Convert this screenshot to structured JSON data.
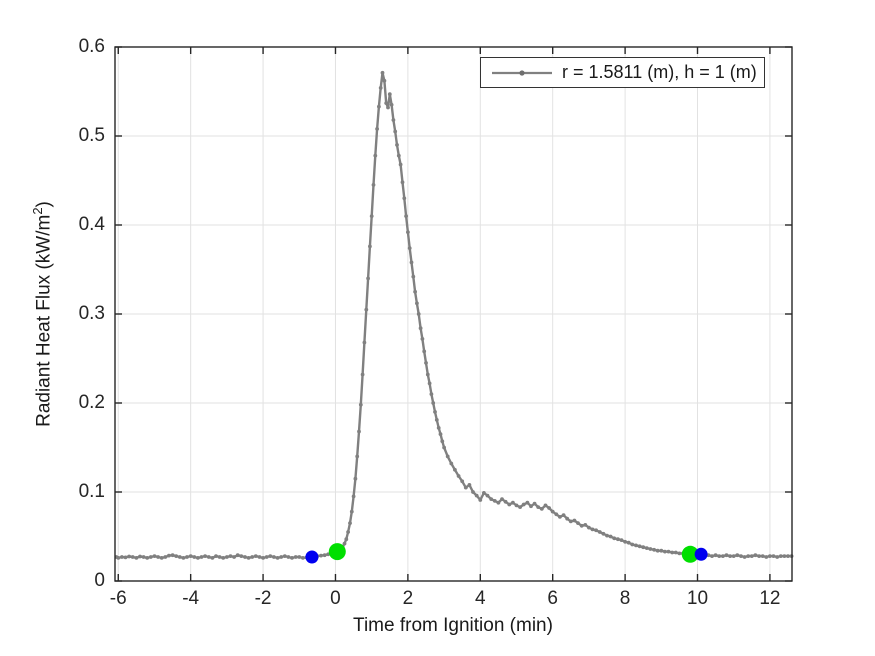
{
  "figure": {
    "background": "#ffffff",
    "axes_color": "#262626",
    "grid_color": "#e2e2e2",
    "tick_label_color": "#262626"
  },
  "legend": {
    "label": "r = 1.5811 (m), h = 1 (m)",
    "line_color": "#808080",
    "position": "top-right"
  },
  "chart_data": {
    "type": "line",
    "title": "",
    "xlabel": "Time from Ignition (min)",
    "ylabel": "Radiant Heat Flux (kW/m^2)",
    "ylabel_parts": {
      "prefix": "Radiant Heat Flux (kW/m",
      "sup": "2",
      "suffix": ")"
    },
    "xlim": [
      -6.09,
      12.61
    ],
    "ylim": [
      0,
      0.6
    ],
    "x_ticks": [
      -6,
      -4,
      -2,
      0,
      2,
      4,
      6,
      8,
      10,
      12
    ],
    "y_ticks": [
      0,
      0.1,
      0.2,
      0.3,
      0.4,
      0.5,
      0.6
    ],
    "grid": true,
    "legend_position": "top-right",
    "series": [
      {
        "name": "r = 1.5811 (m), h = 1 (m)",
        "color": "#808080",
        "marker": "point",
        "peak": {
          "x": 1.3,
          "y": 0.571
        },
        "points": [
          [
            -6.05,
            0.027
          ],
          [
            -6,
            0.026
          ],
          [
            -5.9,
            0.027
          ],
          [
            -5.8,
            0.0265
          ],
          [
            -5.7,
            0.0275
          ],
          [
            -5.6,
            0.027
          ],
          [
            -5.5,
            0.026
          ],
          [
            -5.4,
            0.0275
          ],
          [
            -5.3,
            0.027
          ],
          [
            -5.2,
            0.026
          ],
          [
            -5.1,
            0.027
          ],
          [
            -5,
            0.028
          ],
          [
            -4.9,
            0.027
          ],
          [
            -4.8,
            0.026
          ],
          [
            -4.7,
            0.027
          ],
          [
            -4.6,
            0.0285
          ],
          [
            -4.5,
            0.029
          ],
          [
            -4.4,
            0.028
          ],
          [
            -4.3,
            0.027
          ],
          [
            -4.2,
            0.026
          ],
          [
            -4.1,
            0.027
          ],
          [
            -4,
            0.028
          ],
          [
            -3.9,
            0.027
          ],
          [
            -3.8,
            0.026
          ],
          [
            -3.7,
            0.027
          ],
          [
            -3.6,
            0.028
          ],
          [
            -3.5,
            0.027
          ],
          [
            -3.4,
            0.026
          ],
          [
            -3.3,
            0.028
          ],
          [
            -3.2,
            0.027
          ],
          [
            -3.1,
            0.026
          ],
          [
            -3,
            0.027
          ],
          [
            -2.9,
            0.028
          ],
          [
            -2.8,
            0.027
          ],
          [
            -2.7,
            0.029
          ],
          [
            -2.6,
            0.028
          ],
          [
            -2.5,
            0.027
          ],
          [
            -2.4,
            0.026
          ],
          [
            -2.3,
            0.027
          ],
          [
            -2.2,
            0.028
          ],
          [
            -2.1,
            0.027
          ],
          [
            -2,
            0.026
          ],
          [
            -1.9,
            0.027
          ],
          [
            -1.8,
            0.028
          ],
          [
            -1.7,
            0.027
          ],
          [
            -1.6,
            0.026
          ],
          [
            -1.5,
            0.027
          ],
          [
            -1.4,
            0.028
          ],
          [
            -1.3,
            0.027
          ],
          [
            -1.2,
            0.026
          ],
          [
            -1.1,
            0.027
          ],
          [
            -1,
            0.027
          ],
          [
            -0.9,
            0.026
          ],
          [
            -0.8,
            0.0265
          ],
          [
            -0.7,
            0.027
          ],
          [
            -0.6,
            0.0275
          ],
          [
            -0.5,
            0.028
          ],
          [
            -0.4,
            0.0285
          ],
          [
            -0.3,
            0.029
          ],
          [
            -0.2,
            0.03
          ],
          [
            -0.1,
            0.031
          ],
          [
            0,
            0.033
          ],
          [
            0.1,
            0.034
          ],
          [
            0.15,
            0.036
          ],
          [
            0.2,
            0.038
          ],
          [
            0.25,
            0.042
          ],
          [
            0.3,
            0.047
          ],
          [
            0.35,
            0.055
          ],
          [
            0.4,
            0.065
          ],
          [
            0.45,
            0.078
          ],
          [
            0.5,
            0.095
          ],
          [
            0.55,
            0.115
          ],
          [
            0.6,
            0.14
          ],
          [
            0.65,
            0.168
          ],
          [
            0.7,
            0.198
          ],
          [
            0.75,
            0.232
          ],
          [
            0.8,
            0.268
          ],
          [
            0.85,
            0.305
          ],
          [
            0.9,
            0.34
          ],
          [
            0.95,
            0.376
          ],
          [
            1,
            0.41
          ],
          [
            1.05,
            0.445
          ],
          [
            1.1,
            0.478
          ],
          [
            1.15,
            0.508
          ],
          [
            1.2,
            0.533
          ],
          [
            1.25,
            0.554
          ],
          [
            1.3,
            0.571
          ],
          [
            1.35,
            0.562
          ],
          [
            1.4,
            0.537
          ],
          [
            1.45,
            0.532
          ],
          [
            1.5,
            0.547
          ],
          [
            1.55,
            0.535
          ],
          [
            1.6,
            0.518
          ],
          [
            1.65,
            0.505
          ],
          [
            1.7,
            0.49
          ],
          [
            1.75,
            0.478
          ],
          [
            1.8,
            0.468
          ],
          [
            1.85,
            0.448
          ],
          [
            1.9,
            0.43
          ],
          [
            1.95,
            0.41
          ],
          [
            2,
            0.392
          ],
          [
            2.05,
            0.374
          ],
          [
            2.1,
            0.358
          ],
          [
            2.15,
            0.342
          ],
          [
            2.2,
            0.325
          ],
          [
            2.25,
            0.312
          ],
          [
            2.3,
            0.3
          ],
          [
            2.35,
            0.284
          ],
          [
            2.4,
            0.272
          ],
          [
            2.45,
            0.258
          ],
          [
            2.5,
            0.245
          ],
          [
            2.55,
            0.232
          ],
          [
            2.6,
            0.222
          ],
          [
            2.65,
            0.21
          ],
          [
            2.7,
            0.2
          ],
          [
            2.75,
            0.19
          ],
          [
            2.8,
            0.181
          ],
          [
            2.85,
            0.172
          ],
          [
            2.9,
            0.165
          ],
          [
            2.95,
            0.157
          ],
          [
            3,
            0.15
          ],
          [
            3.1,
            0.14
          ],
          [
            3.2,
            0.132
          ],
          [
            3.3,
            0.125
          ],
          [
            3.4,
            0.118
          ],
          [
            3.5,
            0.112
          ],
          [
            3.6,
            0.105
          ],
          [
            3.7,
            0.108
          ],
          [
            3.8,
            0.1
          ],
          [
            3.9,
            0.096
          ],
          [
            4,
            0.091
          ],
          [
            4.1,
            0.099
          ],
          [
            4.2,
            0.096
          ],
          [
            4.3,
            0.092
          ],
          [
            4.4,
            0.09
          ],
          [
            4.5,
            0.088
          ],
          [
            4.6,
            0.092
          ],
          [
            4.7,
            0.089
          ],
          [
            4.8,
            0.086
          ],
          [
            4.9,
            0.088
          ],
          [
            5,
            0.085
          ],
          [
            5.1,
            0.083
          ],
          [
            5.2,
            0.086
          ],
          [
            5.3,
            0.088
          ],
          [
            5.4,
            0.084
          ],
          [
            5.5,
            0.087
          ],
          [
            5.6,
            0.083
          ],
          [
            5.7,
            0.081
          ],
          [
            5.8,
            0.085
          ],
          [
            5.9,
            0.082
          ],
          [
            6,
            0.078
          ],
          [
            6.1,
            0.075
          ],
          [
            6.2,
            0.072
          ],
          [
            6.3,
            0.074
          ],
          [
            6.4,
            0.07
          ],
          [
            6.5,
            0.067
          ],
          [
            6.6,
            0.068
          ],
          [
            6.7,
            0.065
          ],
          [
            6.8,
            0.062
          ],
          [
            6.9,
            0.063
          ],
          [
            7,
            0.06
          ],
          [
            7.1,
            0.058
          ],
          [
            7.2,
            0.057
          ],
          [
            7.3,
            0.055
          ],
          [
            7.4,
            0.053
          ],
          [
            7.5,
            0.051
          ],
          [
            7.6,
            0.05
          ],
          [
            7.7,
            0.048
          ],
          [
            7.8,
            0.047
          ],
          [
            7.9,
            0.046
          ],
          [
            8,
            0.044
          ],
          [
            8.1,
            0.043
          ],
          [
            8.2,
            0.041
          ],
          [
            8.3,
            0.04
          ],
          [
            8.4,
            0.039
          ],
          [
            8.5,
            0.038
          ],
          [
            8.6,
            0.037
          ],
          [
            8.7,
            0.036
          ],
          [
            8.8,
            0.035
          ],
          [
            8.9,
            0.034
          ],
          [
            9,
            0.034
          ],
          [
            9.1,
            0.033
          ],
          [
            9.2,
            0.033
          ],
          [
            9.3,
            0.032
          ],
          [
            9.4,
            0.032
          ],
          [
            9.5,
            0.031
          ],
          [
            9.6,
            0.031
          ],
          [
            9.7,
            0.03
          ],
          [
            9.8,
            0.03
          ],
          [
            9.9,
            0.03
          ],
          [
            10,
            0.03
          ],
          [
            10.1,
            0.03
          ],
          [
            10.2,
            0.029
          ],
          [
            10.3,
            0.029
          ],
          [
            10.4,
            0.028
          ],
          [
            10.5,
            0.029
          ],
          [
            10.6,
            0.028
          ],
          [
            10.7,
            0.028
          ],
          [
            10.8,
            0.029
          ],
          [
            10.9,
            0.028
          ],
          [
            11,
            0.028
          ],
          [
            11.1,
            0.029
          ],
          [
            11.2,
            0.028
          ],
          [
            11.3,
            0.027
          ],
          [
            11.4,
            0.028
          ],
          [
            11.5,
            0.028
          ],
          [
            11.6,
            0.029
          ],
          [
            11.7,
            0.028
          ],
          [
            11.8,
            0.028
          ],
          [
            11.9,
            0.027
          ],
          [
            12,
            0.028
          ],
          [
            12.1,
            0.028
          ],
          [
            12.2,
            0.027
          ],
          [
            12.3,
            0.028
          ],
          [
            12.4,
            0.028
          ],
          [
            12.5,
            0.028
          ],
          [
            12.6,
            0.028
          ]
        ]
      }
    ],
    "highlight_markers": [
      {
        "name": "event-marker-blue-pre",
        "x": -0.65,
        "y": 0.027,
        "color": "#0000F0",
        "radius_px": 6.5
      },
      {
        "name": "event-marker-green-start",
        "x": 0.05,
        "y": 0.033,
        "color": "#00DF00",
        "radius_px": 8.5
      },
      {
        "name": "event-marker-green-end",
        "x": 9.8,
        "y": 0.03,
        "color": "#00DF00",
        "radius_px": 8.5
      },
      {
        "name": "event-marker-blue-post",
        "x": 10.1,
        "y": 0.03,
        "color": "#0000F0",
        "radius_px": 6.5
      }
    ]
  }
}
